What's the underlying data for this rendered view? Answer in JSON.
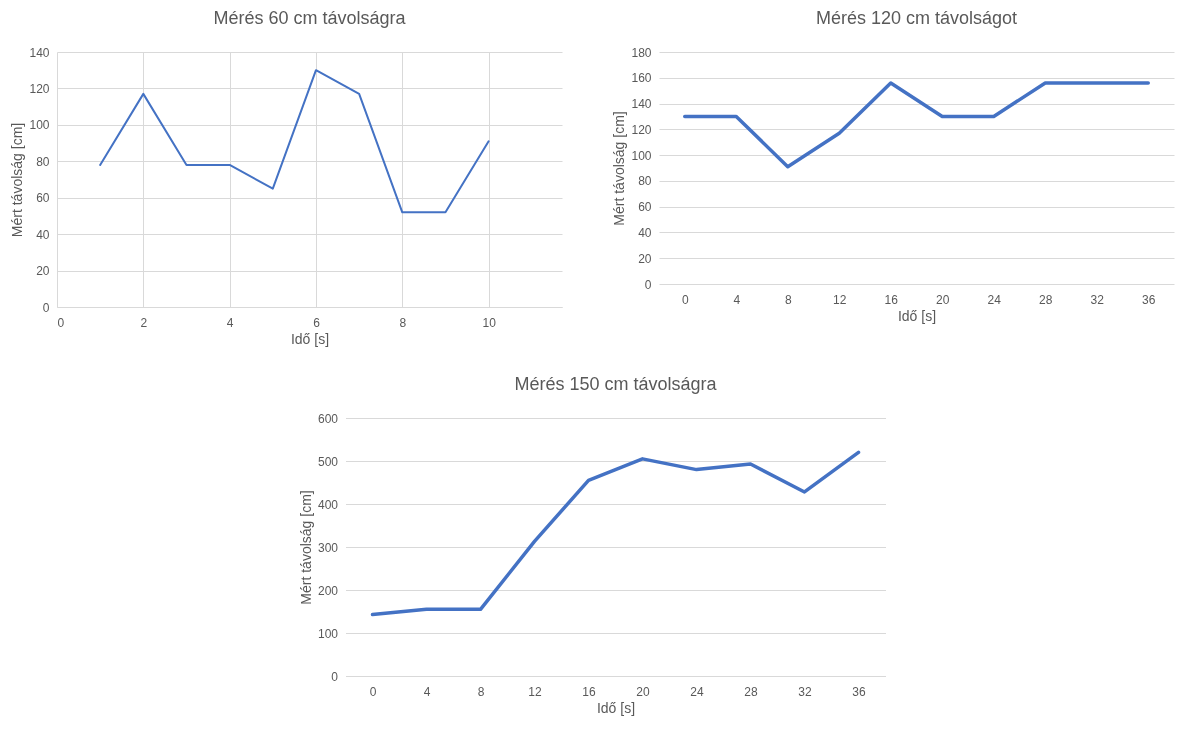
{
  "chart_data": [
    {
      "type": "line",
      "title": "Mérés 60 cm távolságra",
      "xlabel": "Idő [s]",
      "ylabel": "Mért távolság [cm]",
      "x": [
        1,
        2,
        3,
        4,
        5,
        6,
        7,
        8,
        9,
        10
      ],
      "series": [
        {
          "color": "#4472c4",
          "values": [
            78,
            117,
            78,
            78,
            65,
            130,
            117,
            52,
            52,
            91
          ]
        }
      ],
      "xlim": [
        0,
        11.7
      ],
      "xticks": [
        0,
        2,
        4,
        6,
        8,
        10
      ],
      "ylim": [
        0,
        140
      ],
      "yticks": [
        0,
        20,
        40,
        60,
        80,
        100,
        120,
        140
      ],
      "grid": true
    },
    {
      "type": "line",
      "title": "Mérés 120 cm távolságot",
      "xlabel": "Idő [s]",
      "ylabel": "Mért távolság [cm]",
      "categories": [
        "0",
        "4",
        "8",
        "12",
        "16",
        "20",
        "24",
        "28",
        "32",
        "36"
      ],
      "series": [
        {
          "color": "#4472c4",
          "values": [
            130,
            130,
            91,
            117,
            156,
            130,
            130,
            156,
            156,
            156
          ]
        }
      ],
      "ylim": [
        0,
        180
      ],
      "yticks": [
        0,
        20,
        40,
        60,
        80,
        100,
        120,
        140,
        160,
        180
      ],
      "grid": "y"
    },
    {
      "type": "line",
      "title": "Mérés 150 cm távolságra",
      "xlabel": "Idő [s]",
      "ylabel": "Mért távolság [cm]",
      "categories": [
        "0",
        "4",
        "8",
        "12",
        "16",
        "20",
        "24",
        "28",
        "32",
        "36"
      ],
      "series": [
        {
          "color": "#4472c4",
          "values": [
            143,
            155,
            155,
            313,
            455,
            505,
            480,
            493,
            428,
            520
          ]
        }
      ],
      "ylim": [
        0,
        600
      ],
      "yticks": [
        0,
        100,
        200,
        300,
        400,
        500,
        600
      ],
      "grid": "y"
    }
  ]
}
